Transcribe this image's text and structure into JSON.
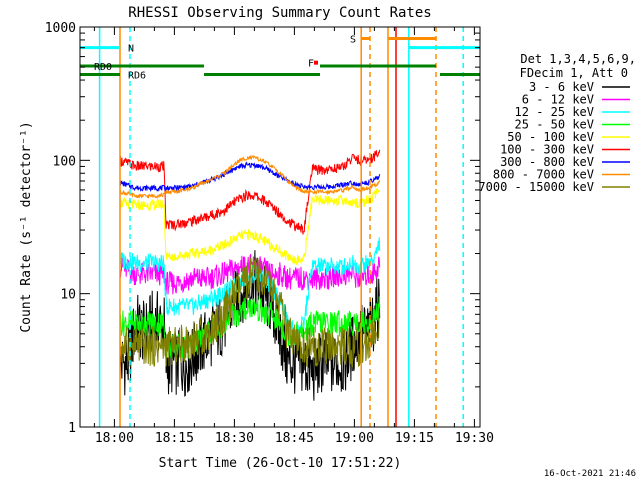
{
  "chart_data": {
    "type": "line",
    "title": "RHESSI Observing Summary Count Rates",
    "xlabel": "Start Time (26-Oct-10 17:51:22)",
    "ylabel": "Count Rate (s⁻¹ detector⁻¹)",
    "y_scale": "log",
    "xlim_minutes": [
      0,
      100
    ],
    "ylim": [
      1,
      1000
    ],
    "x_ticks": [
      {
        "t": 8.6,
        "label": "18:00"
      },
      {
        "t": 23.6,
        "label": "18:15"
      },
      {
        "t": 38.6,
        "label": "18:30"
      },
      {
        "t": 53.6,
        "label": "18:45"
      },
      {
        "t": 68.6,
        "label": "19:00"
      },
      {
        "t": 83.6,
        "label": "19:15"
      },
      {
        "t": 98.6,
        "label": "19:30"
      }
    ],
    "y_ticks": [
      {
        "v": 1,
        "label": "1"
      },
      {
        "v": 10,
        "label": "10"
      },
      {
        "v": 100,
        "label": "100"
      },
      {
        "v": 1000,
        "label": "1000"
      }
    ],
    "legend": {
      "placement": "right",
      "header": [
        "Det 1,3,4,5,6,9,",
        "FDecim 1, Att 0"
      ]
    },
    "series": [
      {
        "name": "3 - 6 keV",
        "color": "#000000",
        "x": [
          10,
          12,
          14,
          16,
          18,
          21,
          21.5,
          24,
          27,
          30,
          33,
          36,
          38,
          40,
          42,
          44,
          46,
          48,
          50,
          52,
          54,
          56,
          58,
          60,
          62,
          64,
          66,
          68,
          70,
          72,
          73,
          74,
          75
        ],
        "y": [
          3,
          3,
          6,
          5,
          6,
          6,
          3,
          3,
          3,
          4,
          5,
          6,
          8,
          10,
          12,
          12,
          10,
          8,
          5,
          3,
          3,
          3,
          2.5,
          3,
          3,
          3,
          3,
          4,
          5,
          5,
          6,
          7,
          9
        ]
      },
      {
        "name": "6 - 12 keV",
        "color": "#ff00ff",
        "x": [
          10,
          14,
          18,
          21,
          21.5,
          24,
          28,
          32,
          36,
          38,
          40,
          42,
          44,
          46,
          48,
          50,
          52,
          54,
          58,
          62,
          66,
          68,
          70,
          72,
          73,
          74,
          75
        ],
        "y": [
          16,
          14,
          14,
          14,
          12,
          12,
          13,
          13,
          14,
          15,
          16,
          16,
          16,
          15,
          14,
          14,
          13,
          13,
          13,
          13,
          14,
          14,
          13,
          14,
          14,
          15,
          17
        ]
      },
      {
        "name": "12 - 25 keV",
        "color": "#00ffff",
        "x": [
          10,
          14,
          18,
          21,
          21.5,
          24,
          28,
          32,
          36,
          38,
          40,
          42,
          44,
          46,
          48,
          50,
          52,
          54,
          56,
          58,
          62,
          66,
          68,
          70,
          72,
          73,
          74,
          75
        ],
        "y": [
          18,
          17,
          17,
          17,
          8,
          8,
          8,
          9,
          10,
          11,
          12,
          14,
          14,
          13,
          11,
          9,
          6,
          5,
          6,
          16,
          16,
          16,
          17,
          16,
          17,
          18,
          20,
          25
        ]
      },
      {
        "name": "25 - 50 keV",
        "color": "#00ff00",
        "x": [
          10,
          14,
          18,
          21,
          21.5,
          24,
          28,
          32,
          36,
          38,
          40,
          42,
          44,
          46,
          48,
          50,
          52,
          54,
          56,
          58,
          62,
          66,
          68,
          70,
          72,
          73,
          74,
          75
        ],
        "y": [
          6,
          6,
          6,
          6,
          4,
          4,
          4,
          5,
          6,
          7,
          7,
          8,
          8,
          7,
          7,
          6,
          5,
          5,
          5,
          6,
          6,
          6,
          6,
          6,
          6,
          6,
          7,
          8
        ]
      },
      {
        "name": "50 - 100 keV",
        "color": "#ffff00",
        "x": [
          10,
          14,
          18,
          21,
          21.5,
          24,
          28,
          32,
          36,
          38,
          40,
          42,
          44,
          46,
          48,
          50,
          52,
          54,
          56,
          58,
          62,
          66,
          68,
          70,
          72,
          73,
          74,
          75
        ],
        "y": [
          48,
          46,
          46,
          47,
          19,
          19,
          20,
          21,
          23,
          25,
          27,
          28,
          27,
          25,
          23,
          21,
          19,
          18,
          18,
          50,
          50,
          50,
          48,
          48,
          50,
          52,
          56,
          65
        ]
      },
      {
        "name": "100 - 300 keV",
        "color": "#ff0000",
        "x": [
          10,
          14,
          18,
          21,
          21.5,
          24,
          28,
          32,
          36,
          38,
          40,
          42,
          44,
          46,
          48,
          50,
          52,
          54,
          56,
          58,
          62,
          66,
          68,
          70,
          72,
          73,
          74,
          75
        ],
        "y": [
          100,
          90,
          90,
          90,
          33,
          33,
          35,
          38,
          42,
          47,
          52,
          55,
          54,
          50,
          45,
          40,
          35,
          32,
          30,
          85,
          85,
          90,
          105,
          100,
          100,
          105,
          110,
          120
        ]
      },
      {
        "name": "300 - 800 keV",
        "color": "#0000ff",
        "x": [
          10,
          14,
          18,
          21,
          21.5,
          24,
          28,
          32,
          36,
          38,
          40,
          42,
          44,
          46,
          48,
          50,
          52,
          54,
          56,
          58,
          62,
          66,
          68,
          70,
          72,
          73,
          74,
          75
        ],
        "y": [
          68,
          62,
          62,
          62,
          62,
          62,
          64,
          70,
          78,
          85,
          90,
          92,
          92,
          88,
          82,
          75,
          70,
          66,
          63,
          63,
          63,
          66,
          68,
          66,
          68,
          70,
          72,
          76
        ]
      },
      {
        "name": "800 - 7000 keV",
        "color": "#ff8c00",
        "x": [
          10,
          14,
          18,
          21,
          21.5,
          24,
          28,
          32,
          36,
          38,
          40,
          42,
          44,
          46,
          48,
          50,
          52,
          54,
          56,
          58,
          62,
          66,
          68,
          70,
          72,
          73,
          74,
          75
        ],
        "y": [
          58,
          54,
          54,
          55,
          58,
          58,
          62,
          70,
          80,
          90,
          100,
          105,
          104,
          98,
          90,
          80,
          70,
          62,
          58,
          58,
          58,
          60,
          63,
          60,
          62,
          64,
          66,
          70
        ]
      },
      {
        "name": "7000 - 15000 keV",
        "color": "#808000",
        "x": [
          10,
          14,
          18,
          21,
          21.5,
          24,
          28,
          32,
          36,
          38,
          40,
          42,
          44,
          46,
          48,
          50,
          52,
          54,
          56,
          58,
          62,
          66,
          68,
          70,
          72,
          73,
          74,
          75
        ],
        "y": [
          4,
          4,
          4,
          4,
          4,
          4,
          4.5,
          5,
          7,
          9,
          11,
          13,
          14,
          13,
          11,
          8,
          5,
          4,
          4,
          4,
          4,
          4,
          4,
          4,
          4,
          5,
          5,
          6
        ]
      }
    ],
    "annotations": [
      {
        "text": "N",
        "t": 12,
        "y": 700,
        "color": "#00ffff"
      },
      {
        "text": "RD0",
        "t": 3.5,
        "y": 510,
        "color": "#008000"
      },
      {
        "text": "RD6",
        "t": 12,
        "y": 440,
        "color": "#008000"
      },
      {
        "text": "F",
        "t": 57,
        "y": 540,
        "color": "#ff0000"
      },
      {
        "text": "S",
        "t": 67.5,
        "y": 820,
        "color": "#ff8c00"
      }
    ],
    "footer_date": "16-Oct-2021 21:46"
  }
}
